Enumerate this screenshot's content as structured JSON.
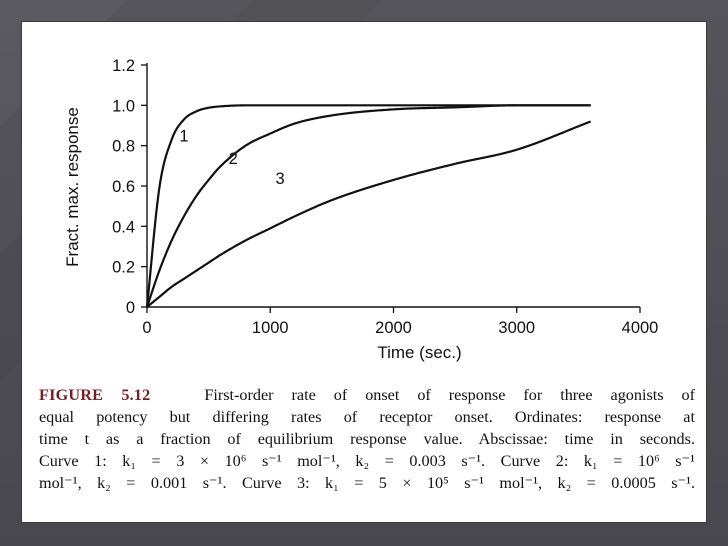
{
  "chart_data": {
    "type": "line",
    "title": "",
    "xlabel": "Time (sec.)",
    "ylabel": "Fract. max. response",
    "xlim": [
      0,
      4000
    ],
    "ylim": [
      0,
      1.2
    ],
    "x_ticks": [
      0,
      1000,
      2000,
      3000,
      4000
    ],
    "x_tick_labels": [
      "0",
      "1000",
      "2000",
      "3000",
      "4000"
    ],
    "y_ticks": [
      0,
      0.2,
      0.4,
      0.6,
      0.8,
      1.0,
      1.2
    ],
    "y_tick_labels": [
      "0",
      "0.2",
      "0.4",
      "0.6",
      "0.8",
      "1.0",
      "1.2"
    ],
    "grid": false,
    "legend": "none",
    "x": [
      0,
      100,
      200,
      300,
      400,
      500,
      600,
      800,
      1000,
      1200,
      1500,
      2000,
      2500,
      3000,
      3600
    ],
    "series": [
      {
        "name": "1",
        "label": "1",
        "values": [
          0,
          0.59,
          0.83,
          0.93,
          0.97,
          0.988,
          0.995,
          1.0,
          1.0,
          1.0,
          1.0,
          1.0,
          1.0,
          1.0,
          1.0
        ]
      },
      {
        "name": "2",
        "label": "2",
        "values": [
          0,
          0.18,
          0.33,
          0.45,
          0.55,
          0.63,
          0.7,
          0.8,
          0.86,
          0.91,
          0.95,
          0.98,
          0.99,
          1.0,
          1.0
        ]
      },
      {
        "name": "3",
        "label": "3",
        "values": [
          0,
          0.05,
          0.1,
          0.14,
          0.18,
          0.22,
          0.26,
          0.33,
          0.39,
          0.45,
          0.53,
          0.63,
          0.71,
          0.78,
          0.92
        ]
      }
    ],
    "curve_label_anchor": [
      {
        "x": 300,
        "y": 0.82
      },
      {
        "x": 700,
        "y": 0.71
      },
      {
        "x": 1080,
        "y": 0.61
      }
    ]
  },
  "caption": {
    "figure_label": "FIGURE 5.12",
    "line1": "First-order rate of onset of response for three agonists of",
    "line2": "equal potency but differing rates of receptor onset. Ordinates: response at",
    "line3": "time t as a fraction of equilibrium response value. Abscissae: time in seconds.",
    "line4": "Curve 1: k₁ = 3 × 10⁶ s⁻¹ mol⁻¹, k₂ = 0.003 s⁻¹. Curve 2: k₁ = 10⁶ s⁻¹",
    "line5": "mol⁻¹, k₂ = 0.001 s⁻¹. Curve 3: k₁ = 5 × 10⁵ s⁻¹ mol⁻¹, k₂ = 0.0005 s⁻¹."
  }
}
